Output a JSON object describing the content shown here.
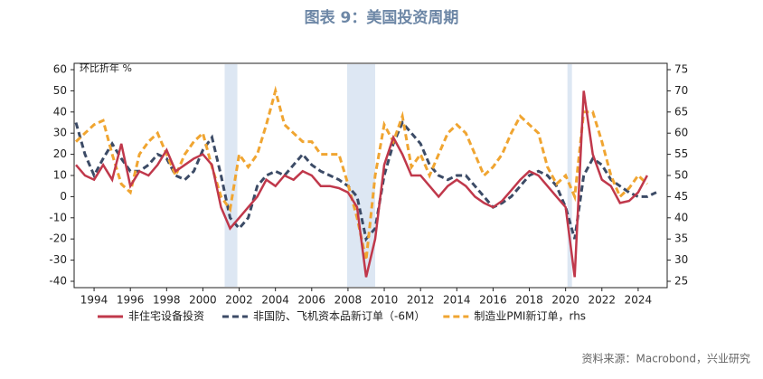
{
  "chart_data": {
    "type": "line",
    "title": "图表 9：美国投资周期",
    "y_label": "环比折年 %",
    "source": "资料来源：Macrobond，兴业研究",
    "x": [
      1993,
      1993.5,
      1994,
      1994.5,
      1995,
      1995.5,
      1996,
      1996.5,
      1997,
      1997.5,
      1998,
      1998.5,
      1999,
      1999.5,
      2000,
      2000.5,
      2001,
      2001.5,
      2002,
      2002.5,
      2003,
      2003.5,
      2004,
      2004.5,
      2005,
      2005.5,
      2006,
      2006.5,
      2007,
      2007.5,
      2008,
      2008.5,
      2009,
      2009.5,
      2010,
      2010.5,
      2011,
      2011.5,
      2012,
      2012.5,
      2013,
      2013.5,
      2014,
      2014.5,
      2015,
      2015.5,
      2016,
      2016.5,
      2017,
      2017.5,
      2018,
      2018.5,
      2019,
      2019.5,
      2020,
      2020.5,
      2021,
      2021.5,
      2022,
      2022.5,
      2023,
      2023.5,
      2024,
      2024.5,
      2025
    ],
    "series": [
      {
        "name": "非住宅设备投资",
        "color": "#c0384b",
        "dash": false,
        "values": [
          15,
          10,
          8,
          15,
          8,
          25,
          5,
          12,
          10,
          15,
          22,
          12,
          15,
          18,
          20,
          15,
          -5,
          -15,
          -10,
          -5,
          0,
          8,
          5,
          10,
          8,
          12,
          10,
          5,
          5,
          4,
          2,
          -5,
          -38,
          -20,
          15,
          28,
          20,
          10,
          10,
          5,
          0,
          5,
          8,
          5,
          0,
          -3,
          -5,
          -2,
          3,
          8,
          12,
          10,
          5,
          0,
          -5,
          -38,
          50,
          20,
          8,
          5,
          -3,
          -2,
          2,
          10,
          null
        ]
      },
      {
        "name": "非国防、飞机资本品新订单（-6M）",
        "color": "#3c4b66",
        "dash": true,
        "values": [
          35,
          20,
          10,
          18,
          25,
          18,
          12,
          12,
          15,
          20,
          18,
          10,
          8,
          12,
          22,
          28,
          10,
          -10,
          -15,
          -10,
          5,
          10,
          12,
          10,
          15,
          20,
          15,
          12,
          10,
          8,
          5,
          0,
          -20,
          -15,
          10,
          25,
          35,
          30,
          25,
          15,
          10,
          8,
          10,
          10,
          5,
          0,
          -5,
          -3,
          0,
          5,
          10,
          12,
          10,
          5,
          -5,
          -20,
          10,
          18,
          15,
          8,
          5,
          2,
          0,
          0,
          2
        ]
      },
      {
        "name": "制造业PMI新订单，rhs",
        "color": "#f0a531",
        "dash": true,
        "axis": "y2",
        "values": [
          58,
          60,
          62,
          63,
          55,
          48,
          46,
          55,
          58,
          60,
          55,
          50,
          55,
          58,
          60,
          52,
          45,
          42,
          55,
          52,
          55,
          62,
          70,
          62,
          60,
          58,
          58,
          55,
          55,
          55,
          48,
          40,
          30,
          50,
          62,
          58,
          64,
          52,
          55,
          50,
          55,
          60,
          62,
          60,
          55,
          50,
          52,
          55,
          60,
          64,
          62,
          60,
          52,
          48,
          50,
          45,
          65,
          65,
          58,
          50,
          45,
          47,
          50,
          48,
          null
        ]
      }
    ],
    "shaded": [
      [
        2001.2,
        2001.9
      ],
      [
        2007.95,
        2009.5
      ],
      [
        2020.1,
        2020.35
      ]
    ],
    "xlim": [
      1992.9,
      2025.6
    ],
    "xticks": [
      1994,
      1996,
      1998,
      2000,
      2002,
      2004,
      2006,
      2008,
      2010,
      2012,
      2014,
      2016,
      2018,
      2020,
      2022,
      2024
    ],
    "ylim": [
      -43,
      63
    ],
    "yticks": [
      -40,
      -30,
      -20,
      -10,
      0,
      10,
      20,
      30,
      40,
      50,
      60
    ],
    "y2lim": [
      23.5,
      76.5
    ],
    "y2ticks": [
      25,
      30,
      35,
      40,
      45,
      50,
      55,
      60,
      65,
      70,
      75
    ]
  }
}
